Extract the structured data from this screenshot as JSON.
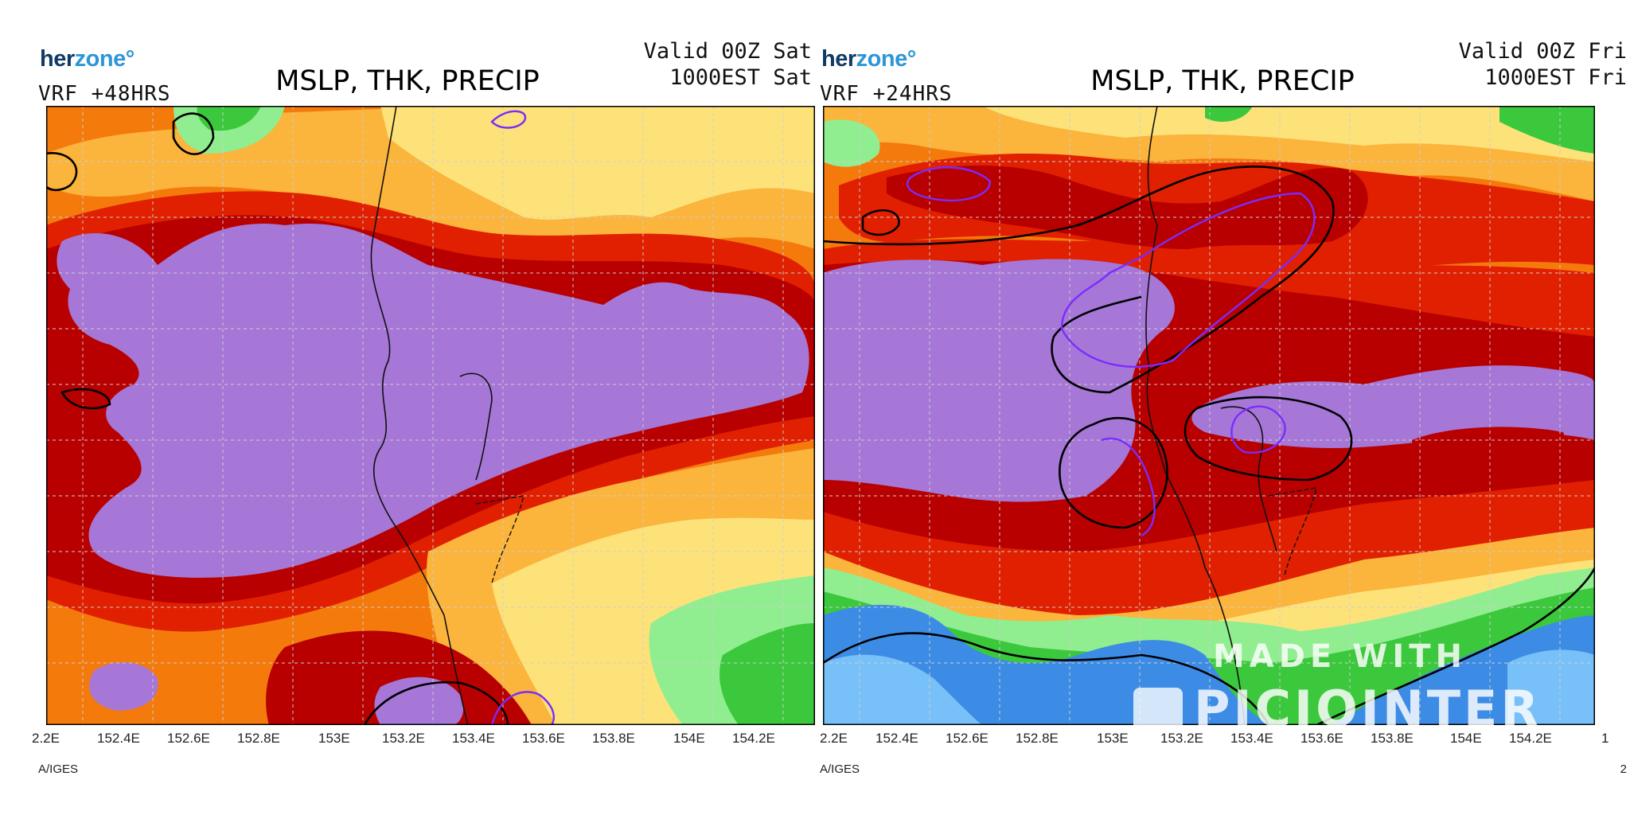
{
  "panels": [
    {
      "brand_part1": "her",
      "brand_part2": "zone°",
      "model_label": "VRF  +48HRS",
      "title": "MSLP, THK, PRECIP",
      "valid_line1": "Valid 00Z Sat",
      "valid_line2": "1000EST Sat",
      "lon_ticks": [
        "2.2E",
        "152.4E",
        "152.6E",
        "152.8E",
        "153E",
        "153.2E",
        "153.4E",
        "153.6E",
        "153.8E",
        "154E",
        "154.2E"
      ],
      "credit": "A/IGES",
      "edge_char": ""
    },
    {
      "brand_part1": "her",
      "brand_part2": "zone°",
      "model_label": "VRF  +24HRS",
      "title": "MSLP, THK, PRECIP",
      "valid_line1": "Valid 00Z Fri",
      "valid_line2": "1000EST Fri",
      "lon_ticks": [
        "2.2E",
        "152.4E",
        "152.6E",
        "152.8E",
        "153E",
        "153.2E",
        "153.4E",
        "153.6E",
        "153.8E",
        "154E",
        "154.2E",
        "1"
      ],
      "credit": "A/IGES",
      "edge_char": "2"
    }
  ],
  "watermark": {
    "line1": "MADE WITH",
    "line2": "PICJOINTER"
  },
  "precip_colors": {
    "purple": "#a677d6",
    "dark_red": "#b80000",
    "red": "#e02000",
    "orange": "#f47a0c",
    "light_orange": "#fbb43c",
    "yellow": "#fde27a",
    "light_green": "#90ee90",
    "green": "#3cc83c",
    "blue": "#3c8ce6",
    "light_blue": "#78c0f8"
  }
}
